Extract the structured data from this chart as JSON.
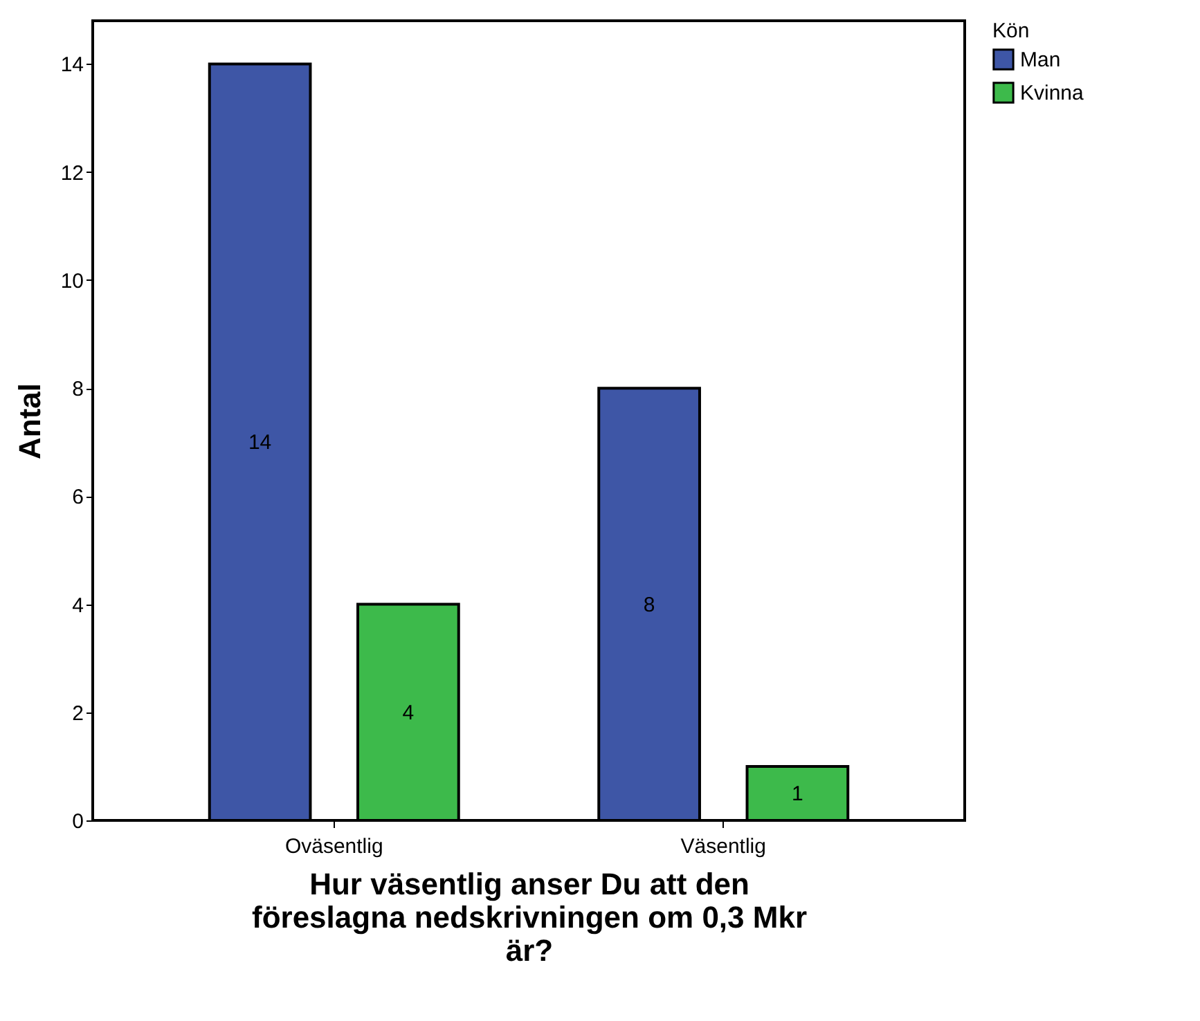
{
  "chart_data": {
    "type": "bar",
    "xlabel": "Hur väsentlig anser Du att den föreslagna nedskrivningen om 0,3 Mkr är?",
    "ylabel": "Antal",
    "legend_title": "Kön",
    "categories": [
      "Oväsentlig",
      "Väsentlig"
    ],
    "series": [
      {
        "name": "Man",
        "color": "#3e56a6",
        "values": [
          14,
          8
        ]
      },
      {
        "name": "Kvinna",
        "color": "#3dba4b",
        "values": [
          4,
          1
        ]
      }
    ],
    "ylim": [
      0,
      14.8
    ],
    "yticks": [
      0,
      2,
      4,
      6,
      8,
      10,
      12,
      14
    ],
    "grid": false,
    "legend": "top right",
    "data_labels": true
  }
}
